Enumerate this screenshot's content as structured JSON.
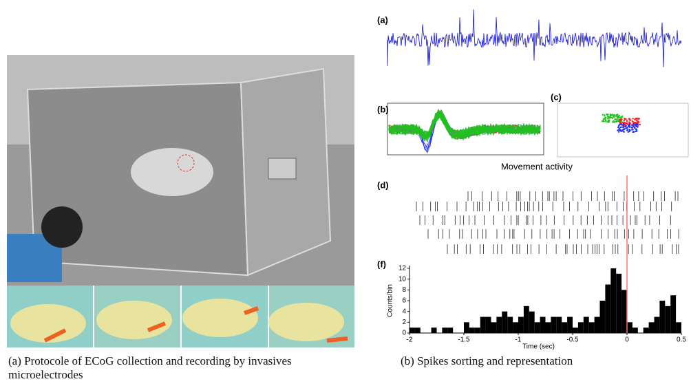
{
  "left_panel": {
    "caption": "(a) Protocole of ECoG collection and recording by invasives microelectrodes"
  },
  "right_panel": {
    "caption": "(b) Spikes sorting and representation",
    "labels": [
      "(a)",
      "(b)",
      "(c)",
      "(d)",
      "(f)"
    ],
    "raster_title": "Movement activity",
    "histogram": {
      "type": "bar",
      "bins": [
        -2,
        -1.95,
        -1.9,
        -1.85,
        -1.8,
        -1.75,
        -1.7,
        -1.65,
        -1.6,
        -1.55,
        -1.5,
        -1.45,
        -1.4,
        -1.35,
        -1.3,
        -1.25,
        -1.2,
        -1.15,
        -1.1,
        -1.05,
        -1,
        -0.95,
        -0.9,
        -0.85,
        -0.8,
        -0.75,
        -0.7,
        -0.65,
        -0.6,
        -0.55,
        -0.5,
        -0.45,
        -0.4,
        -0.35,
        -0.3,
        -0.25,
        -0.2,
        -0.15,
        -0.1,
        -0.05,
        0,
        0.05,
        0.1,
        0.15,
        0.2,
        0.25,
        0.3,
        0.35,
        0.4,
        0.45,
        0.5
      ],
      "values": [
        1,
        1,
        0,
        0,
        1,
        0,
        1,
        1,
        0,
        0,
        2,
        1,
        1,
        3,
        3,
        2,
        3,
        4,
        3,
        2,
        3,
        5,
        4,
        2,
        3,
        2,
        3,
        3,
        2,
        3,
        1,
        2,
        3,
        2,
        3,
        6,
        9,
        12,
        11,
        8,
        2,
        1,
        0,
        1,
        2,
        3,
        6,
        5,
        7,
        2
      ],
      "ylabel": "Counts/bin",
      "xlabel": "Time (sec)",
      "xlim": [
        -2,
        0.5
      ],
      "ylim": [
        0,
        12
      ],
      "xticks": [
        -2,
        -1.5,
        -1,
        -0.5,
        0,
        0.5
      ],
      "yticks": [
        0,
        2,
        4,
        6,
        8,
        10,
        12
      ],
      "color": "#000000",
      "event_time": 0,
      "event_color": "#ff7070"
    }
  }
}
